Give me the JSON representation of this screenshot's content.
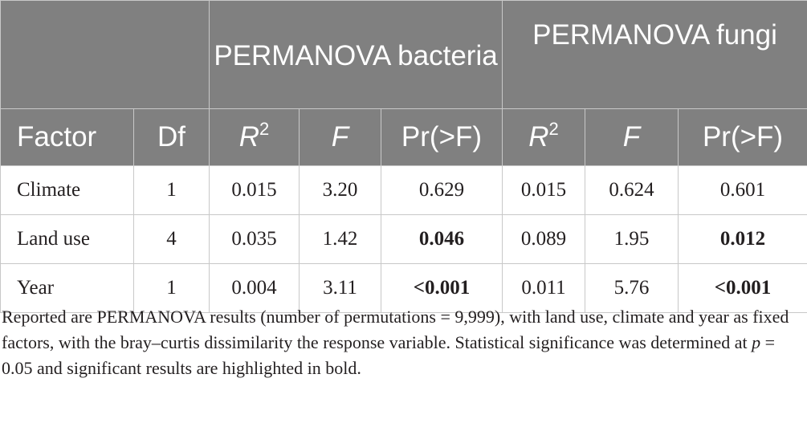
{
  "header": {
    "group_bacteria": "PERMANOVA bacteria",
    "group_fungi": "PERMANOVA fungi",
    "col_factor": "Factor",
    "col_df": "Df",
    "col_r_base": "R",
    "col_r_sup": "2",
    "col_f": "F",
    "col_pr": "Pr(>F)"
  },
  "rows": [
    {
      "factor": "Climate",
      "df": "1",
      "bact_r2": "0.015",
      "bact_f": "3.20",
      "bact_pr": "0.629",
      "fungi_r2": "0.015",
      "fungi_f": "0.624",
      "fungi_pr": "0.601"
    },
    {
      "factor": "Land use",
      "df": "4",
      "bact_r2": "0.035",
      "bact_f": "1.42",
      "bact_pr": "0.046",
      "fungi_r2": "0.089",
      "fungi_f": "1.95",
      "fungi_pr": "0.012"
    },
    {
      "factor": "Year",
      "df": "1",
      "bact_r2": "0.004",
      "bact_f": "3.11",
      "bact_pr": "<0.001",
      "fungi_r2": "0.011",
      "fungi_f": "5.76",
      "fungi_pr": "<0.001"
    }
  ],
  "caption": {
    "part1": "Reported are PERMANOVA results (number of permutations = 9,999), with land use, climate and year as fixed factors, with the bray–curtis dissimilarity the response variable. Statistical significance was determined at ",
    "p_symbol": "p",
    "part2": " = 0.05 and significant results are highlighted in bold."
  },
  "colors": {
    "header_bg": "#808080",
    "header_text": "#ffffff",
    "border": "#c8c8c8",
    "text": "#231f20"
  }
}
